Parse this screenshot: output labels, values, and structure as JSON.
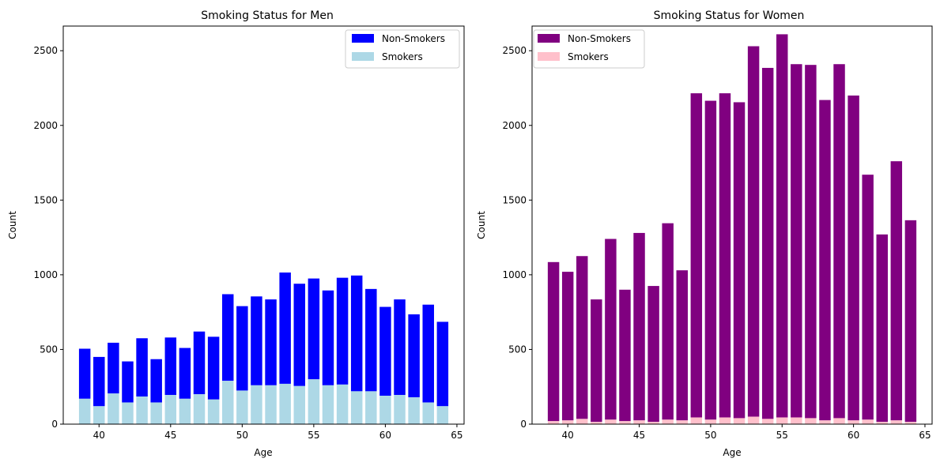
{
  "chart_data": [
    {
      "type": "bar",
      "stacked": true,
      "title": "Smoking Status for Men",
      "xlabel": "Age",
      "ylabel": "Count",
      "xlim": [
        37.5,
        65.5
      ],
      "ylim": [
        0,
        2665
      ],
      "xticks": [
        40,
        45,
        50,
        55,
        60,
        65
      ],
      "yticks": [
        0,
        500,
        1000,
        1500,
        2000,
        2500
      ],
      "legend_position": "top-right",
      "x": [
        39,
        40,
        41,
        42,
        43,
        44,
        45,
        46,
        47,
        48,
        49,
        50,
        51,
        52,
        53,
        54,
        55,
        56,
        57,
        58,
        59,
        60,
        61,
        62,
        63,
        64
      ],
      "series": [
        {
          "name": "Non-Smokers",
          "color": "#0000ff",
          "values": [
            335,
            330,
            340,
            275,
            390,
            290,
            385,
            340,
            420,
            420,
            580,
            565,
            595,
            575,
            745,
            685,
            675,
            635,
            715,
            775,
            685,
            595,
            640,
            555,
            655,
            565
          ]
        },
        {
          "name": "Smokers",
          "color": "#add8e6",
          "values": [
            170,
            120,
            205,
            145,
            185,
            145,
            195,
            170,
            200,
            165,
            290,
            225,
            260,
            260,
            270,
            255,
            300,
            260,
            265,
            220,
            220,
            190,
            195,
            180,
            145,
            120
          ]
        }
      ]
    },
    {
      "type": "bar",
      "stacked": true,
      "title": "Smoking Status for Women",
      "xlabel": "Age",
      "ylabel": "Count",
      "xlim": [
        37.5,
        65.5
      ],
      "ylim": [
        0,
        2665
      ],
      "xticks": [
        40,
        45,
        50,
        55,
        60,
        65
      ],
      "yticks": [
        0,
        500,
        1000,
        1500,
        2000,
        2500
      ],
      "legend_position": "top-left",
      "x": [
        39,
        40,
        41,
        42,
        43,
        44,
        45,
        46,
        47,
        48,
        49,
        50,
        51,
        52,
        53,
        54,
        55,
        56,
        57,
        58,
        59,
        60,
        61,
        62,
        63,
        64
      ],
      "series": [
        {
          "name": "Non-Smokers",
          "color": "#800080",
          "values": [
            1065,
            995,
            1090,
            820,
            1210,
            880,
            1255,
            910,
            1315,
            1005,
            2170,
            2135,
            2170,
            2115,
            2480,
            2350,
            2565,
            2365,
            2365,
            2145,
            2370,
            2175,
            1640,
            1255,
            1735,
            1350
          ]
        },
        {
          "name": "Smokers",
          "color": "#ffc0cb",
          "values": [
            20,
            25,
            35,
            15,
            30,
            20,
            25,
            15,
            30,
            25,
            45,
            30,
            45,
            40,
            50,
            35,
            45,
            45,
            40,
            25,
            40,
            25,
            30,
            15,
            25,
            15
          ]
        }
      ]
    }
  ]
}
